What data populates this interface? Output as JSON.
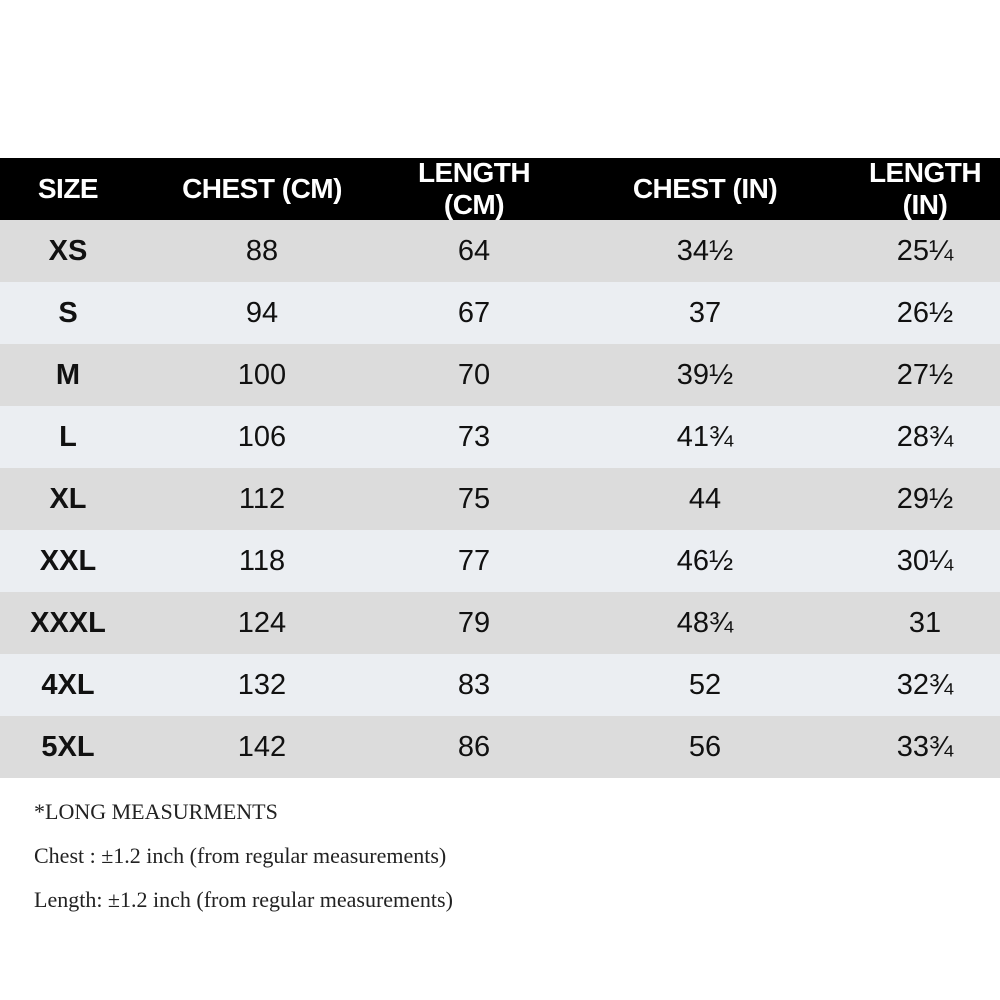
{
  "table": {
    "header": [
      "SIZE",
      "CHEST (CM)",
      "LENGTH (CM)",
      "CHEST (IN)",
      "LENGTH (IN)"
    ],
    "rows": [
      [
        "XS",
        "88",
        "64",
        "34½",
        "25¼"
      ],
      [
        "S",
        "94",
        "67",
        "37",
        "26½"
      ],
      [
        "M",
        "100",
        "70",
        "39½",
        "27½"
      ],
      [
        "L",
        "106",
        "73",
        "41¾",
        "28¾"
      ],
      [
        "XL",
        "112",
        "75",
        "44",
        "29½"
      ],
      [
        "XXL",
        "118",
        "77",
        "46½",
        "30¼"
      ],
      [
        "XXXL",
        "124",
        "79",
        "48¾",
        "31"
      ],
      [
        "4XL",
        "132",
        "83",
        "52",
        "32¾"
      ],
      [
        "5XL",
        "142",
        "86",
        "56",
        "33¾"
      ]
    ]
  },
  "notes": [
    "*LONG MEASURMENTS",
    "Chest : ±1.2 inch (from regular measurements)",
    "Length: ±1.2 inch (from regular measurements)"
  ]
}
